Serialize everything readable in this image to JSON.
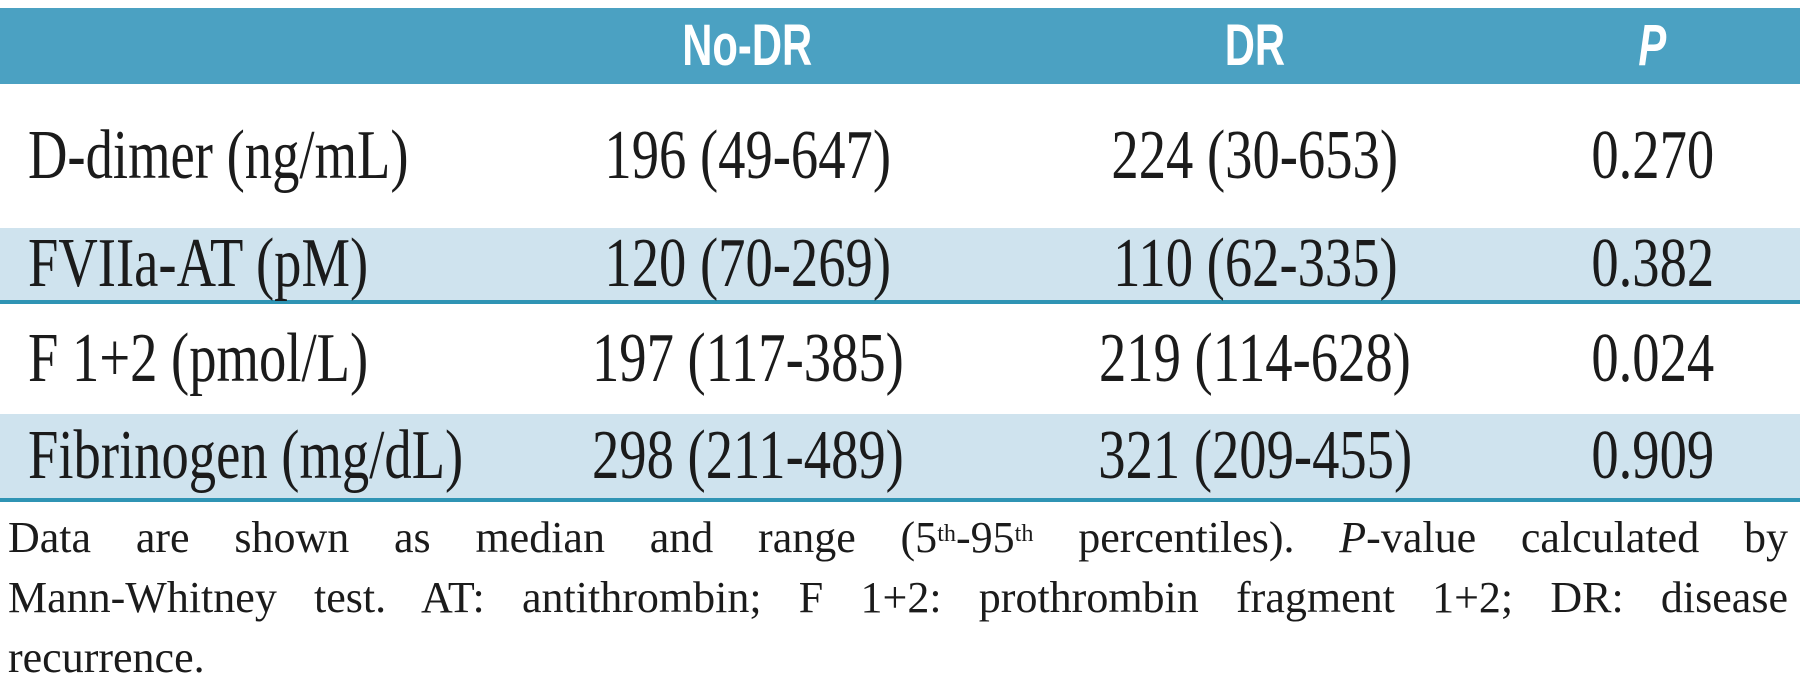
{
  "colors": {
    "header_bg": "#4BA1C2",
    "stripe_bg": "#CFE3EE",
    "rule": "#2F94B4",
    "header_text": "#FFFFFF",
    "body_text": "#1B1B1B"
  },
  "table": {
    "columns": {
      "label": "",
      "no_dr": "No-DR",
      "dr": "DR",
      "p": "P"
    },
    "rows": [
      {
        "label": "D-dimer (ng/mL)",
        "no_dr": "196 (49-647)",
        "dr": "224 (30-653)",
        "p": "0.270"
      },
      {
        "label": "FVIIa-AT (pM)",
        "no_dr": "120 (70-269)",
        "dr": "110 (62-335)",
        "p": "0.382"
      },
      {
        "label": "F 1+2 (pmol/L)",
        "no_dr": "197 (117-385)",
        "dr": "219 (114-628)",
        "p": "0.024"
      },
      {
        "label": "Fibrinogen (mg/dL)",
        "no_dr": "298 (211-489)",
        "dr": "321 (209-455)",
        "p": "0.909"
      }
    ]
  },
  "footnote": {
    "line1": {
      "seg1": "Data are shown as median and range (5",
      "sup1": "th",
      "seg2": "-95",
      "sup2": "th",
      "seg3": " percentiles). ",
      "p_italic": "P",
      "seg4": "-value calculated by"
    },
    "line2": "Mann-Whitney test. AT: antithrombin; F 1+2: prothrombin fragment 1+2; DR: disease",
    "line3": "recurrence."
  }
}
